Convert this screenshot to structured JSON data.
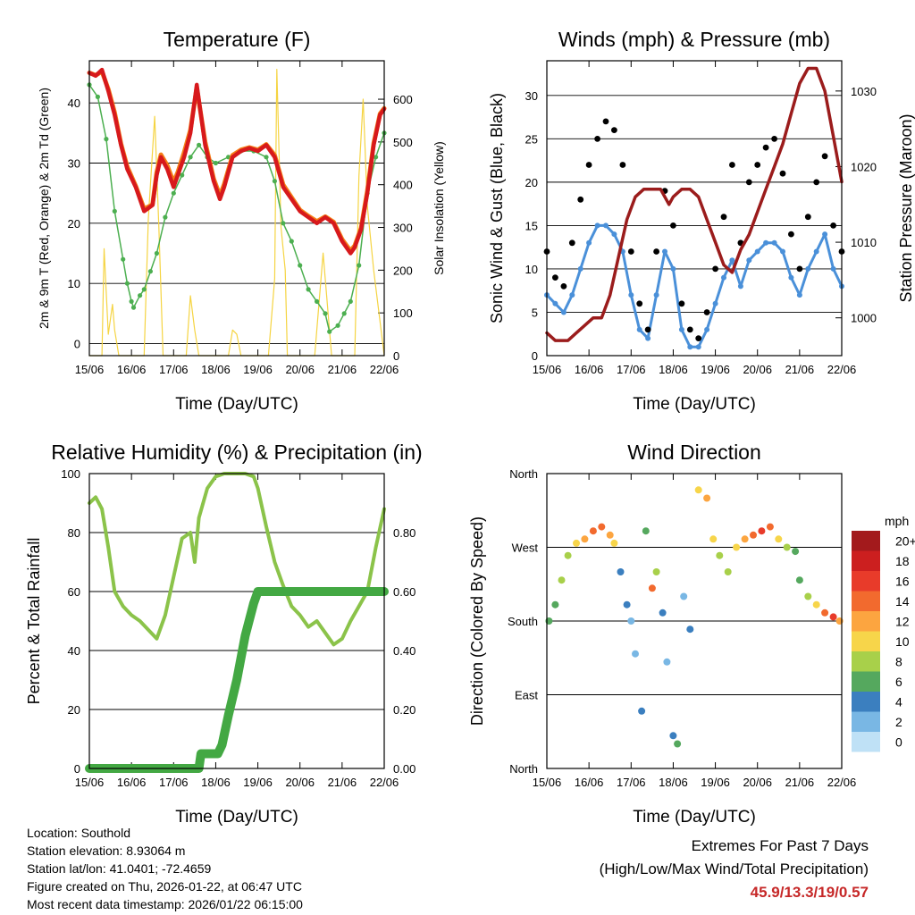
{
  "colors": {
    "temp_2m": "#d7191c",
    "temp_9m": "#f57f17",
    "dewpoint": "#4caf50",
    "solar": "#f5d442",
    "gust": "#000000",
    "wind": "#4a90d9",
    "pressure": "#9b1c1c",
    "rh": "#8bc34a",
    "precip": "#43a843"
  },
  "chart_data": [
    {
      "id": "temperature",
      "type": "line",
      "title": "Temperature (F)",
      "xlabel": "Time (Day/UTC)",
      "ylabel": "2m & 9m T (Red, Orange) & 2m Td (Green)",
      "ylabel_right": "Solar Insolation (Yellow)",
      "x_ticks": [
        "15/06",
        "16/06",
        "17/06",
        "18/06",
        "19/06",
        "20/06",
        "21/06",
        "22/06"
      ],
      "xlim": [
        0,
        7
      ],
      "ylim": [
        -2,
        47
      ],
      "y_ticks": [
        0,
        10,
        20,
        30,
        40
      ],
      "ylim_right": [
        0,
        690
      ],
      "y_ticks_right": [
        0,
        100,
        200,
        300,
        400,
        500,
        600
      ],
      "grid": true,
      "series": [
        {
          "name": "2m T",
          "color": "temp_2m",
          "x": [
            0,
            0.15,
            0.3,
            0.45,
            0.6,
            0.75,
            0.9,
            1.1,
            1.3,
            1.5,
            1.6,
            1.7,
            1.85,
            2.0,
            2.1,
            2.25,
            2.4,
            2.55,
            2.75,
            2.95,
            3.1,
            3.2,
            3.4,
            3.6,
            3.8,
            4.0,
            4.2,
            4.4,
            4.6,
            4.8,
            5.0,
            5.2,
            5.4,
            5.6,
            5.8,
            6.0,
            6.2,
            6.3,
            6.45,
            6.6,
            6.75,
            6.9,
            7.0
          ],
          "y": [
            45,
            44.5,
            45.5,
            42,
            38,
            33,
            29,
            26,
            22,
            23,
            28,
            31,
            29,
            26,
            28,
            31,
            35,
            43,
            33,
            27,
            24,
            26,
            31,
            32,
            32.5,
            32,
            33,
            31,
            26,
            24,
            22,
            21,
            20,
            21,
            20,
            17,
            15,
            16,
            19,
            25,
            33,
            38,
            39
          ]
        },
        {
          "name": "9m T",
          "color": "temp_9m",
          "x": [
            0,
            0.15,
            0.3,
            0.45,
            0.6,
            0.75,
            0.9,
            1.1,
            1.3,
            1.5,
            1.6,
            1.7,
            1.85,
            2.0,
            2.1,
            2.25,
            2.4,
            2.55,
            2.75,
            2.95,
            3.1,
            3.2,
            3.4,
            3.6,
            3.8,
            4.0,
            4.2,
            4.4,
            4.6,
            4.8,
            5.0,
            5.2,
            5.4,
            5.6,
            5.8,
            6.0,
            6.2,
            6.3,
            6.45,
            6.6,
            6.75,
            6.9,
            7.0
          ],
          "y": [
            45,
            44.6,
            45.2,
            42.3,
            38.4,
            33.2,
            29.4,
            26.2,
            22.4,
            23.1,
            28.5,
            31.4,
            29.6,
            26.8,
            28.5,
            31.8,
            35.5,
            42.5,
            33.5,
            27.4,
            24.6,
            26.5,
            31.3,
            32.2,
            32.6,
            32.2,
            33.1,
            31.3,
            26.4,
            24.3,
            22.2,
            21.2,
            20.3,
            21.1,
            20.2,
            17.3,
            15.4,
            16.3,
            19.2,
            25.4,
            33.3,
            38.2,
            39.1
          ]
        },
        {
          "name": "2m Td",
          "color": "dewpoint",
          "x": [
            0,
            0.2,
            0.4,
            0.6,
            0.8,
            0.9,
            1.0,
            1.05,
            1.2,
            1.3,
            1.45,
            1.6,
            1.8,
            2.0,
            2.2,
            2.4,
            2.6,
            2.8,
            3.0,
            3.3,
            3.6,
            3.9,
            4.2,
            4.4,
            4.6,
            4.8,
            5.0,
            5.2,
            5.4,
            5.6,
            5.7,
            5.9,
            6.05,
            6.2,
            6.4,
            6.6,
            6.8,
            7.0
          ],
          "y": [
            43,
            41,
            34,
            22,
            14,
            10,
            7,
            6,
            8,
            9,
            12,
            15,
            21,
            25,
            28,
            31,
            33,
            31,
            30,
            31,
            32,
            32,
            31,
            27,
            20,
            17,
            13,
            9,
            7,
            5,
            2,
            3,
            5,
            7,
            13,
            25,
            31,
            35
          ]
        },
        {
          "name": "Solar Insolation",
          "color": "solar",
          "axis": "right",
          "x": [
            0,
            0.3,
            0.35,
            0.45,
            0.55,
            0.6,
            0.7,
            1.3,
            1.4,
            1.55,
            1.65,
            1.75,
            2.3,
            2.4,
            2.5,
            2.6,
            3.3,
            3.4,
            3.5,
            3.6,
            4.25,
            4.4,
            4.45,
            4.55,
            4.65,
            4.7,
            5.35,
            5.55,
            5.75,
            6.3,
            6.4,
            6.5,
            6.6,
            6.75,
            7.0
          ],
          "y": [
            0,
            0,
            250,
            50,
            120,
            60,
            0,
            0,
            320,
            560,
            300,
            0,
            0,
            140,
            60,
            0,
            0,
            60,
            50,
            0,
            0,
            180,
            670,
            300,
            200,
            0,
            0,
            240,
            0,
            0,
            420,
            600,
            350,
            200,
            0
          ]
        }
      ]
    },
    {
      "id": "winds",
      "type": "scatter",
      "title": "Winds (mph) & Pressure (mb)",
      "xlabel": "Time (Day/UTC)",
      "ylabel": "Sonic Wind & Gust (Blue, Black)",
      "ylabel_right": "Station Pressure (Maroon)",
      "x_ticks": [
        "15/06",
        "16/06",
        "17/06",
        "18/06",
        "19/06",
        "20/06",
        "21/06",
        "22/06"
      ],
      "xlim": [
        0,
        7
      ],
      "ylim": [
        0,
        34
      ],
      "y_ticks": [
        0,
        5,
        10,
        15,
        20,
        25,
        30
      ],
      "ylim_right": [
        995,
        1034
      ],
      "y_ticks_right": [
        1000,
        1010,
        1020,
        1030
      ],
      "grid": true,
      "series": [
        {
          "name": "Gust",
          "color": "gust",
          "x": [
            0,
            0.2,
            0.4,
            0.6,
            0.8,
            1.0,
            1.2,
            1.4,
            1.6,
            1.8,
            2.0,
            2.2,
            2.4,
            2.6,
            2.8,
            3.0,
            3.2,
            3.4,
            3.6,
            3.8,
            4.0,
            4.2,
            4.4,
            4.6,
            4.8,
            5.0,
            5.2,
            5.4,
            5.6,
            5.8,
            6.0,
            6.2,
            6.4,
            6.6,
            6.8,
            7.0
          ],
          "y": [
            12,
            9,
            8,
            13,
            18,
            22,
            25,
            27,
            26,
            22,
            12,
            6,
            3,
            12,
            19,
            15,
            6,
            3,
            2,
            5,
            10,
            16,
            22,
            13,
            20,
            22,
            24,
            25,
            21,
            14,
            10,
            16,
            20,
            23,
            15,
            12
          ]
        },
        {
          "name": "Sonic Wind",
          "color": "wind",
          "x": [
            0,
            0.2,
            0.4,
            0.6,
            0.8,
            1.0,
            1.2,
            1.4,
            1.6,
            1.8,
            2.0,
            2.2,
            2.4,
            2.6,
            2.8,
            3.0,
            3.2,
            3.4,
            3.6,
            3.8,
            4.0,
            4.2,
            4.4,
            4.6,
            4.8,
            5.0,
            5.2,
            5.4,
            5.6,
            5.8,
            6.0,
            6.2,
            6.4,
            6.6,
            6.8,
            7.0
          ],
          "y": [
            7,
            6,
            5,
            7,
            10,
            13,
            15,
            15,
            14,
            12,
            7,
            3,
            2,
            7,
            12,
            10,
            3,
            1,
            1,
            3,
            6,
            9,
            11,
            8,
            11,
            12,
            13,
            13,
            12,
            9,
            7,
            10,
            12,
            14,
            10,
            8
          ]
        },
        {
          "name": "Station Pressure",
          "color": "pressure",
          "axis": "right",
          "x": [
            0,
            0.2,
            0.5,
            0.7,
            0.9,
            1.1,
            1.3,
            1.5,
            1.7,
            1.9,
            2.1,
            2.3,
            2.5,
            2.7,
            2.8,
            2.9,
            3.0,
            3.2,
            3.4,
            3.6,
            3.8,
            4.0,
            4.2,
            4.4,
            4.6,
            4.8,
            5.0,
            5.2,
            5.4,
            5.6,
            5.8,
            6.0,
            6.2,
            6.4,
            6.6,
            6.8,
            7.0
          ],
          "y": [
            998,
            997,
            997,
            998,
            999,
            1000,
            1000,
            1003,
            1008,
            1013,
            1016,
            1017,
            1017,
            1017,
            1016,
            1015,
            1016,
            1017,
            1017,
            1016,
            1013,
            1010,
            1007,
            1006,
            1009,
            1011,
            1014,
            1017,
            1020,
            1023,
            1027,
            1031,
            1033,
            1033,
            1030,
            1024,
            1018
          ]
        }
      ]
    },
    {
      "id": "humidity",
      "type": "line",
      "title": "Relative Humidity (%) & Precipitation (in)",
      "xlabel": "Time (Day/UTC)",
      "ylabel": "Percent & Total Rainfall",
      "x_ticks": [
        "15/06",
        "16/06",
        "17/06",
        "18/06",
        "19/06",
        "20/06",
        "21/06",
        "22/06"
      ],
      "xlim": [
        0,
        7
      ],
      "ylim": [
        0,
        100
      ],
      "y_ticks": [
        0,
        20,
        40,
        60,
        80,
        100
      ],
      "ylim_right": [
        0,
        1.0
      ],
      "y_ticks_right": [
        "0.00",
        "0.20",
        "0.40",
        "0.60",
        "0.80"
      ],
      "grid": true,
      "series": [
        {
          "name": "RH",
          "color": "rh",
          "x": [
            0,
            0.15,
            0.3,
            0.45,
            0.6,
            0.8,
            1.0,
            1.2,
            1.4,
            1.6,
            1.8,
            2.0,
            2.2,
            2.4,
            2.5,
            2.6,
            2.8,
            3.0,
            3.2,
            3.3,
            3.5,
            3.7,
            3.9,
            4.0,
            4.2,
            4.4,
            4.6,
            4.8,
            5.0,
            5.2,
            5.4,
            5.6,
            5.8,
            6.0,
            6.2,
            6.4,
            6.6,
            6.8,
            7.0
          ],
          "y": [
            90,
            92,
            88,
            75,
            60,
            55,
            52,
            50,
            47,
            44,
            52,
            65,
            78,
            80,
            70,
            85,
            95,
            99,
            100,
            100,
            100,
            100,
            99,
            95,
            82,
            70,
            62,
            55,
            52,
            48,
            50,
            46,
            42,
            44,
            50,
            55,
            60,
            75,
            88
          ]
        },
        {
          "name": "Total Precipitation",
          "color": "precip",
          "axis": "right",
          "x": [
            0,
            2.6,
            2.65,
            3.05,
            3.15,
            3.3,
            3.5,
            3.7,
            3.9,
            4.0,
            7.0
          ],
          "y": [
            0,
            0,
            0.05,
            0.05,
            0.08,
            0.18,
            0.3,
            0.45,
            0.56,
            0.6,
            0.6
          ]
        }
      ]
    },
    {
      "id": "direction",
      "type": "scatter",
      "title": "Wind Direction",
      "xlabel": "Time (Day/UTC)",
      "ylabel": "Direction (Colored By Speed)",
      "x_ticks": [
        "15/06",
        "16/06",
        "17/06",
        "18/06",
        "19/06",
        "20/06",
        "21/06",
        "22/06"
      ],
      "xlim": [
        0,
        7
      ],
      "ylim": [
        0,
        360
      ],
      "y_ticks": [
        "North",
        "East",
        "South",
        "West",
        "North"
      ],
      "grid": true,
      "legend_title": "mph",
      "legend_labels": [
        "20+",
        "18",
        "16",
        "14",
        "12",
        "10",
        "8",
        "6",
        "4",
        "2",
        "0"
      ],
      "legend_colors": [
        "#a31a1c",
        "#cc1f1f",
        "#e83b2a",
        "#f26a2e",
        "#fca540",
        "#f7d54a",
        "#a8d04a",
        "#55a85e",
        "#3b7fbf",
        "#79b7e4",
        "#bfe1f6"
      ],
      "series": [
        {
          "name": "Direction",
          "x": [
            0.05,
            0.2,
            0.35,
            0.5,
            0.7,
            0.9,
            1.1,
            1.3,
            1.5,
            1.6,
            1.75,
            1.9,
            2.0,
            2.1,
            2.25,
            2.35,
            2.5,
            2.6,
            2.75,
            2.85,
            3.0,
            3.1,
            3.25,
            3.4,
            3.6,
            3.8,
            3.95,
            4.1,
            4.3,
            4.5,
            4.7,
            4.9,
            5.1,
            5.3,
            5.5,
            5.7,
            5.9,
            6.0,
            6.2,
            6.4,
            6.6,
            6.8,
            6.95
          ],
          "y": [
            180,
            200,
            230,
            260,
            275,
            280,
            290,
            295,
            285,
            275,
            240,
            200,
            180,
            140,
            70,
            290,
            220,
            240,
            190,
            130,
            40,
            30,
            210,
            170,
            340,
            330,
            280,
            260,
            240,
            270,
            280,
            285,
            290,
            295,
            280,
            270,
            265,
            230,
            210,
            200,
            190,
            185,
            180
          ],
          "speed": [
            6,
            5,
            7,
            8,
            10,
            12,
            14,
            13,
            11,
            9,
            4,
            3,
            2,
            2,
            3,
            6,
            14,
            8,
            3,
            2,
            4,
            5,
            2,
            3,
            10,
            12,
            9,
            8,
            7,
            9,
            11,
            14,
            16,
            14,
            10,
            8,
            6,
            5,
            7,
            10,
            14,
            16,
            12
          ]
        }
      ]
    }
  ],
  "info": {
    "location": "Location: Southold",
    "elevation": "Station elevation: 8.93064 m",
    "latlon": "Station lat/lon: 41.0401; -72.4659",
    "created": "Figure created on Thu, 2026-01-22, at 06:47 UTC",
    "recent": "Most recent data timestamp: 2026/01/22 06:15:00"
  },
  "extremes": {
    "line1": "Extremes For Past 7 Days",
    "line2": "(High/Low/Max Wind/Total Precipitation)",
    "values": "45.9/13.3/19/0.57"
  }
}
